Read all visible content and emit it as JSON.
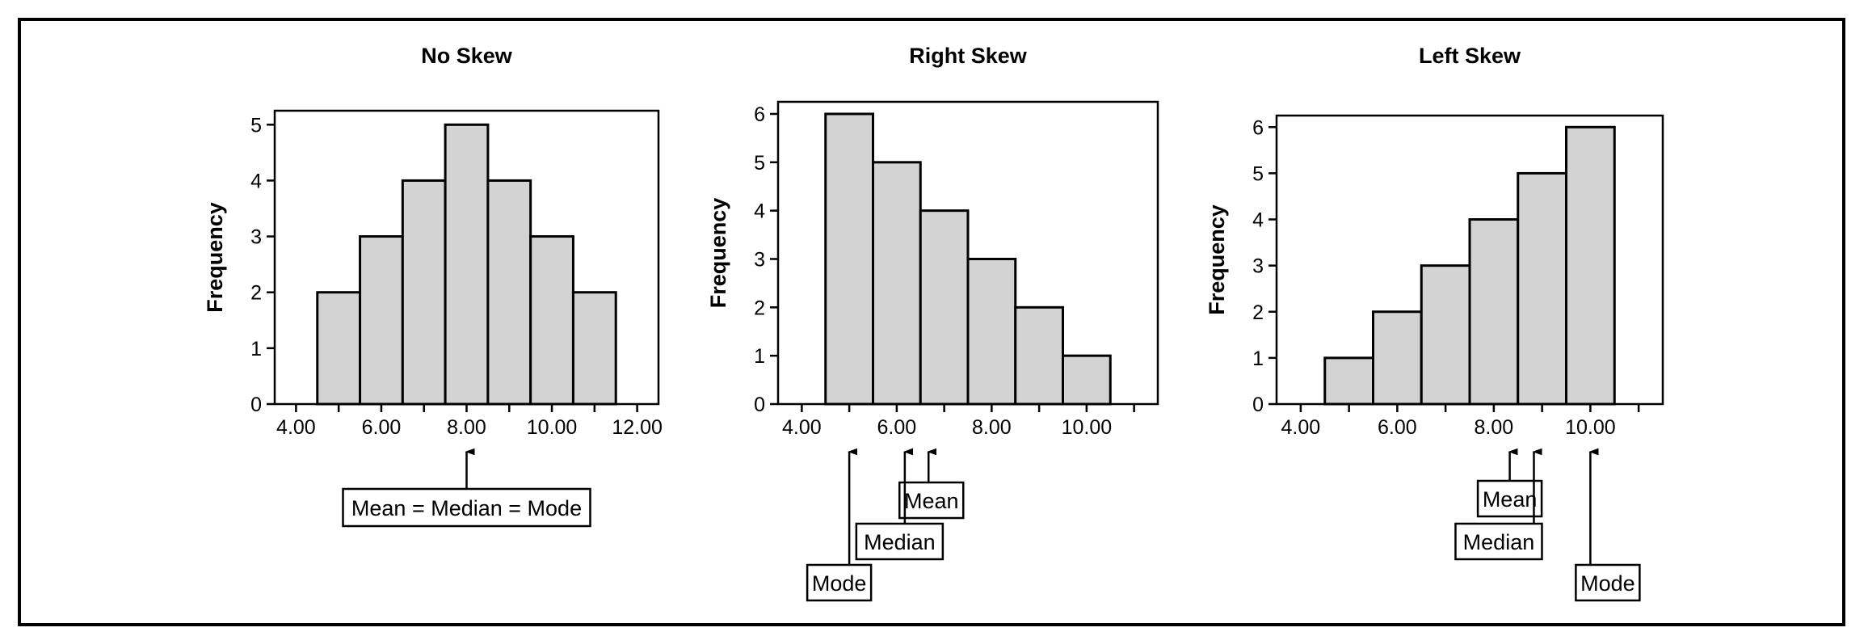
{
  "chart_data": [
    {
      "type": "bar",
      "title": "No Skew",
      "ylabel": "Frequency",
      "xlabel": "",
      "bins": [
        [
          4.5,
          5.5
        ],
        [
          5.5,
          6.5
        ],
        [
          6.5,
          7.5
        ],
        [
          7.5,
          8.5
        ],
        [
          8.5,
          9.5
        ],
        [
          9.5,
          10.5
        ],
        [
          10.5,
          11.5
        ]
      ],
      "values": [
        2,
        3,
        4,
        5,
        4,
        3,
        2
      ],
      "xlim": [
        3.5,
        12.5
      ],
      "ylim": [
        0,
        5.25
      ],
      "xticks": [
        4,
        6,
        8,
        10,
        12
      ],
      "xtick_labels": [
        "4.00",
        "6.00",
        "8.00",
        "10.00",
        "12.00"
      ],
      "yticks": [
        0,
        1,
        2,
        3,
        4,
        5
      ],
      "ytick_labels": [
        "0",
        "1",
        "2",
        "3",
        "4",
        "5"
      ],
      "annotations": [
        {
          "label": "Mean = Median = Mode",
          "x": 8.0
        }
      ]
    },
    {
      "type": "bar",
      "title": "Right Skew",
      "ylabel": "Frequency",
      "xlabel": "",
      "bins": [
        [
          4.5,
          5.5
        ],
        [
          5.5,
          6.5
        ],
        [
          6.5,
          7.5
        ],
        [
          7.5,
          8.5
        ],
        [
          8.5,
          9.5
        ],
        [
          9.5,
          10.5
        ]
      ],
      "values": [
        6,
        5,
        4,
        3,
        2,
        1
      ],
      "xlim": [
        3.5,
        11.5
      ],
      "ylim": [
        0,
        6.25
      ],
      "xticks": [
        4,
        6,
        8,
        10
      ],
      "xtick_labels": [
        "4.00",
        "6.00",
        "8.00",
        "10.00"
      ],
      "yticks": [
        0,
        1,
        2,
        3,
        4,
        5,
        6
      ],
      "ytick_labels": [
        "0",
        "1",
        "2",
        "3",
        "4",
        "5",
        "6"
      ],
      "annotations": [
        {
          "label": "Mean",
          "x": 6.67
        },
        {
          "label": "Median",
          "x": 6.17
        },
        {
          "label": "Mode",
          "x": 5.0
        }
      ]
    },
    {
      "type": "bar",
      "title": "Left Skew",
      "ylabel": "Frequency",
      "xlabel": "",
      "bins": [
        [
          4.5,
          5.5
        ],
        [
          5.5,
          6.5
        ],
        [
          6.5,
          7.5
        ],
        [
          7.5,
          8.5
        ],
        [
          8.5,
          9.5
        ],
        [
          9.5,
          10.5
        ]
      ],
      "values": [
        1,
        2,
        3,
        4,
        5,
        6
      ],
      "xlim": [
        3.5,
        11.5
      ],
      "ylim": [
        0,
        6.25
      ],
      "xticks": [
        4,
        6,
        8,
        10
      ],
      "xtick_labels": [
        "4.00",
        "6.00",
        "8.00",
        "10.00"
      ],
      "yticks": [
        0,
        1,
        2,
        3,
        4,
        5,
        6
      ],
      "ytick_labels": [
        "0",
        "1",
        "2",
        "3",
        "4",
        "5",
        "6"
      ],
      "annotations": [
        {
          "label": "Mean",
          "x": 8.33
        },
        {
          "label": "Median",
          "x": 8.83
        },
        {
          "label": "Mode",
          "x": 10.0
        }
      ]
    }
  ],
  "colors": {
    "bar_fill": "#d3d3d3",
    "bar_stroke": "#000000",
    "axis": "#000000",
    "frame_bg": "#ffffff"
  }
}
